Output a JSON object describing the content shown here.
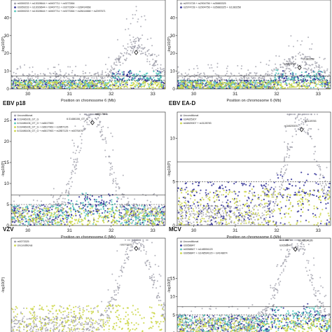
{
  "chart_data": [
    {
      "type": "scatter",
      "title": "",
      "xlabel": "Position on chromosome 6 (Mb)",
      "ylabel": "-log10(P)",
      "xlim": [
        29.6,
        33.3
      ],
      "ylim": [
        0,
        50
      ],
      "xticks": [
        30,
        31,
        32,
        33
      ],
      "yticks": [
        0,
        10,
        20,
        30,
        40
      ],
      "thresholds": [
        7.3,
        5
      ],
      "legend_position": "top-left",
      "legend": [
        "rs9269233 + rs13028644 + rs9407711 + rs9273364",
        "rs9269233 + rs13028644 + rs9407711 + rs9273364 + rs28414668",
        "rs9269233 + rs13028644 + rs9407711 + rs9273364 + rs28414668 + rs2097671"
      ],
      "annotations": [],
      "peak": {
        "x": 32.6,
        "y": 20.5
      },
      "series_colors": [
        "#9a9aa6",
        "#2f2f96",
        "#4fc6ba",
        "#cbd645"
      ]
    },
    {
      "type": "scatter",
      "title": "",
      "xlabel": "Position on chromosome 6 (Mb)",
      "ylabel": "-log10(P)",
      "xlim": [
        29.6,
        33.3
      ],
      "ylim": [
        0,
        50
      ],
      "xticks": [
        30,
        31,
        32,
        33
      ],
      "yticks": [
        0,
        10,
        20,
        30,
        40
      ],
      "thresholds": [
        7.3,
        5
      ],
      "legend_position": "top-left",
      "legend": [
        "rs2974728 + rs2904756 + rs35883325",
        "rs2974728 + rs2904756 + rs35883325 + rs1383258"
      ],
      "annotations": [
        "rs2904756",
        "rs1383258"
      ],
      "peak": {
        "x": 32.55,
        "y": 12
      },
      "series_colors": [
        "#9a9aa6",
        "#2f2f96",
        "#4fc6ba",
        "#cbd645"
      ]
    },
    {
      "type": "scatter",
      "title": "EBV p18",
      "xlabel": "Position on chromosome 6 (Mb)",
      "ylabel": "-log10(P)",
      "xlim": [
        29.6,
        33.3
      ],
      "ylim": [
        0,
        27
      ],
      "xticks": [
        30,
        31,
        32,
        33
      ],
      "yticks": [
        0,
        5,
        10,
        15,
        20,
        25
      ],
      "thresholds": [
        7.3,
        5
      ],
      "legend_position": "top-left",
      "legend": [
        "Unconditional",
        "6:31486106_GT_G",
        "6:31486106_GT_G + rs6617963",
        "6:31486106_GT_G + rs6617963 + rs2857125",
        "6:31486106_GT_G + rs6617963 + rs2857125 + rs9276476"
      ],
      "annotations": [
        "6:31486106_GT_G",
        "rs6617963"
      ],
      "peak": {
        "x": 31.55,
        "y": 24.5
      },
      "series_colors": [
        "#9a9aa6",
        "#2f2f96",
        "#4fc6ba",
        "#cbd645"
      ]
    },
    {
      "type": "scatter",
      "title": "EBV EA-D",
      "xlabel": "Position on chromosome 6 (Mb)",
      "ylabel": "-log10(P)",
      "xlim": [
        29.6,
        33.3
      ],
      "ylim": [
        0,
        13
      ],
      "xticks": [
        30,
        31,
        32,
        33
      ],
      "yticks": [
        0,
        5,
        10
      ],
      "thresholds": [
        7.3,
        5
      ],
      "legend_position": "top-left",
      "legend": [
        "Unconditional",
        "rs34825307",
        "rs34825307 + rs3128783"
      ],
      "annotations": [
        "rs34825307",
        "rs3128783"
      ],
      "peak": {
        "x": 32.6,
        "y": 11
      },
      "series_colors": [
        "#9a9aa6",
        "#2f2f96",
        "#cbd645"
      ]
    },
    {
      "type": "scatter",
      "title": "VZV",
      "xlabel": "",
      "ylabel": "-log10(P)",
      "xlim": [
        29.6,
        33.3
      ],
      "ylim": [
        0,
        14
      ],
      "xticks": [],
      "yticks": [],
      "thresholds": [],
      "legend_position": "top-left",
      "legend": [
        "rs9273325",
        "Unconditional"
      ],
      "annotations": [
        "rs9273325"
      ],
      "peak": {
        "x": 32.6,
        "y": 12.5
      },
      "series_colors": [
        "#9a9aa6",
        "#cbd645"
      ]
    },
    {
      "type": "scatter",
      "title": "MCV",
      "xlabel": "",
      "ylabel": "-log10(P)",
      "xlim": [
        29.6,
        33.3
      ],
      "ylim": [
        0,
        26
      ],
      "xticks": [],
      "yticks": [
        0,
        5,
        10,
        15
      ],
      "thresholds": [
        7.3,
        5
      ],
      "legend_position": "top-left",
      "legend": [
        "Unconditional",
        "rs9268847",
        "rs9268847 + rs148594120",
        "rs9268847 + rs148594120 + rs4148874"
      ],
      "annotations": [
        "rs9268847",
        "rs148594120",
        "rs4148874"
      ],
      "peak": {
        "x": 32.45,
        "y": 23
      },
      "series_colors": [
        "#9a9aa6",
        "#2f2f96",
        "#4fc6ba",
        "#cbd645"
      ]
    }
  ]
}
